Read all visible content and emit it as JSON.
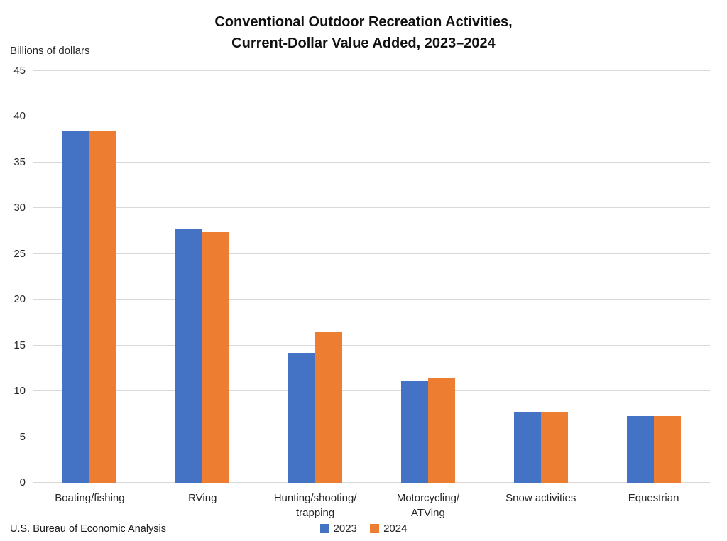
{
  "title": {
    "line1": "Conventional Outdoor Recreation Activities,",
    "line2": "Current-Dollar Value Added, 2023–2024"
  },
  "y_axis": {
    "units_label": "Billions of dollars"
  },
  "legend": {
    "position": "bottom-center",
    "items": [
      {
        "label": "2023",
        "color": "#4472c4"
      },
      {
        "label": "2024",
        "color": "#ed7d31"
      }
    ]
  },
  "source": "U.S. Bureau of Economic Analysis",
  "chart_data": {
    "type": "bar",
    "title": "Conventional Outdoor Recreation Activities, Current-Dollar Value Added, 2023–2024",
    "xlabel": "",
    "ylabel": "Billions of dollars",
    "ylim": [
      0,
      45
    ],
    "ytick_step": 5,
    "grid": true,
    "gridline_color": "#d9d9d9",
    "categories": [
      "Boating/fishing",
      "RVing",
      "Hunting/shooting/trapping",
      "Motorcycling/ATVing",
      "Snow activities",
      "Equestrian"
    ],
    "category_lines": [
      [
        "Boating/fishing"
      ],
      [
        "RVing"
      ],
      [
        "Hunting/shooting/",
        "trapping"
      ],
      [
        "Motorcycling/",
        "ATVing"
      ],
      [
        "Snow activities"
      ],
      [
        "Equestrian"
      ]
    ],
    "series": [
      {
        "name": "2023",
        "color": "#4472c4",
        "values": [
          38.5,
          27.8,
          14.2,
          11.2,
          7.7,
          7.3
        ]
      },
      {
        "name": "2024",
        "color": "#ed7d31",
        "values": [
          38.4,
          27.4,
          16.5,
          11.4,
          7.7,
          7.3
        ]
      }
    ]
  }
}
